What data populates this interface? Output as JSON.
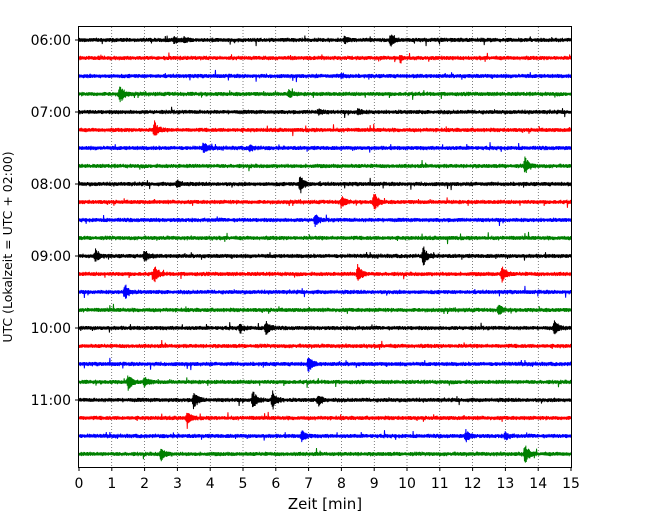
{
  "chart_data": {
    "type": "line",
    "title": "",
    "xlabel": "Zeit  [min]",
    "ylabel": "UTC (Lokalzeit = UTC + 02:00)",
    "xlim": [
      0,
      15
    ],
    "x_ticks": [
      "0",
      "1",
      "2",
      "3",
      "4",
      "5",
      "6",
      "7",
      "8",
      "9",
      "10",
      "11",
      "12",
      "13",
      "14",
      "15"
    ],
    "y_ticks": [
      {
        "label": "06:00",
        "row": 0
      },
      {
        "label": "07:00",
        "row": 4
      },
      {
        "label": "08:00",
        "row": 8
      },
      {
        "label": "09:00",
        "row": 12
      },
      {
        "label": "10:00",
        "row": 16
      },
      {
        "label": "11:00",
        "row": 20
      }
    ],
    "grid": "vertical",
    "row_interval_min": 15,
    "color_cycle": [
      "#000000",
      "#ff0000",
      "#0000ff",
      "#008000"
    ],
    "series": [
      {
        "start": "06:00",
        "events": [
          [
            2.9,
            0.3
          ],
          [
            3.2,
            0.3
          ],
          [
            8.1,
            0.3
          ],
          [
            9.5,
            0.6
          ]
        ]
      },
      {
        "start": "06:15",
        "events": [
          [
            9.8,
            0.2
          ]
        ]
      },
      {
        "start": "06:30",
        "events": [
          [
            8.0,
            0.2
          ]
        ]
      },
      {
        "start": "06:45",
        "events": [
          [
            1.25,
            1.0
          ],
          [
            6.4,
            0.4
          ]
        ]
      },
      {
        "start": "07:00",
        "events": [
          [
            7.3,
            0.3
          ],
          [
            8.5,
            0.3
          ]
        ]
      },
      {
        "start": "07:15",
        "events": [
          [
            2.3,
            0.9
          ]
        ]
      },
      {
        "start": "07:30",
        "events": [
          [
            3.8,
            0.6
          ],
          [
            5.2,
            0.3
          ]
        ]
      },
      {
        "start": "07:45",
        "events": [
          [
            13.6,
            0.9
          ]
        ]
      },
      {
        "start": "08:00",
        "events": [
          [
            3.0,
            0.4
          ],
          [
            6.75,
            1.0
          ]
        ]
      },
      {
        "start": "08:15",
        "events": [
          [
            8.0,
            0.6
          ],
          [
            9.0,
            1.0
          ]
        ]
      },
      {
        "start": "08:30",
        "events": [
          [
            7.2,
            0.6
          ]
        ]
      },
      {
        "start": "08:45",
        "events": []
      },
      {
        "start": "09:00",
        "events": [
          [
            0.5,
            0.7
          ],
          [
            2.0,
            0.6
          ],
          [
            10.5,
            1.0
          ]
        ]
      },
      {
        "start": "09:15",
        "events": [
          [
            2.3,
            0.9
          ],
          [
            8.5,
            1.0
          ],
          [
            12.9,
            0.9
          ]
        ]
      },
      {
        "start": "09:30",
        "events": [
          [
            1.4,
            0.8
          ]
        ]
      },
      {
        "start": "09:45",
        "events": [
          [
            12.8,
            0.5
          ]
        ]
      },
      {
        "start": "10:00",
        "events": [
          [
            4.9,
            0.4
          ],
          [
            5.7,
            0.8
          ],
          [
            14.5,
            0.7
          ]
        ]
      },
      {
        "start": "10:15",
        "events": []
      },
      {
        "start": "10:30",
        "events": [
          [
            7.0,
            0.8
          ]
        ]
      },
      {
        "start": "10:45",
        "events": [
          [
            1.5,
            0.8
          ],
          [
            2.0,
            0.5
          ]
        ]
      },
      {
        "start": "11:00",
        "events": [
          [
            3.5,
            1.0
          ],
          [
            5.3,
            1.0
          ],
          [
            5.9,
            1.0
          ],
          [
            7.3,
            0.6
          ]
        ]
      },
      {
        "start": "11:15",
        "events": [
          [
            3.3,
            0.6
          ]
        ]
      },
      {
        "start": "11:30",
        "events": [
          [
            6.8,
            0.6
          ],
          [
            11.8,
            0.6
          ],
          [
            13.0,
            0.4
          ]
        ]
      },
      {
        "start": "11:45",
        "events": [
          [
            2.5,
            0.7
          ],
          [
            13.6,
            1.0
          ]
        ]
      }
    ]
  }
}
